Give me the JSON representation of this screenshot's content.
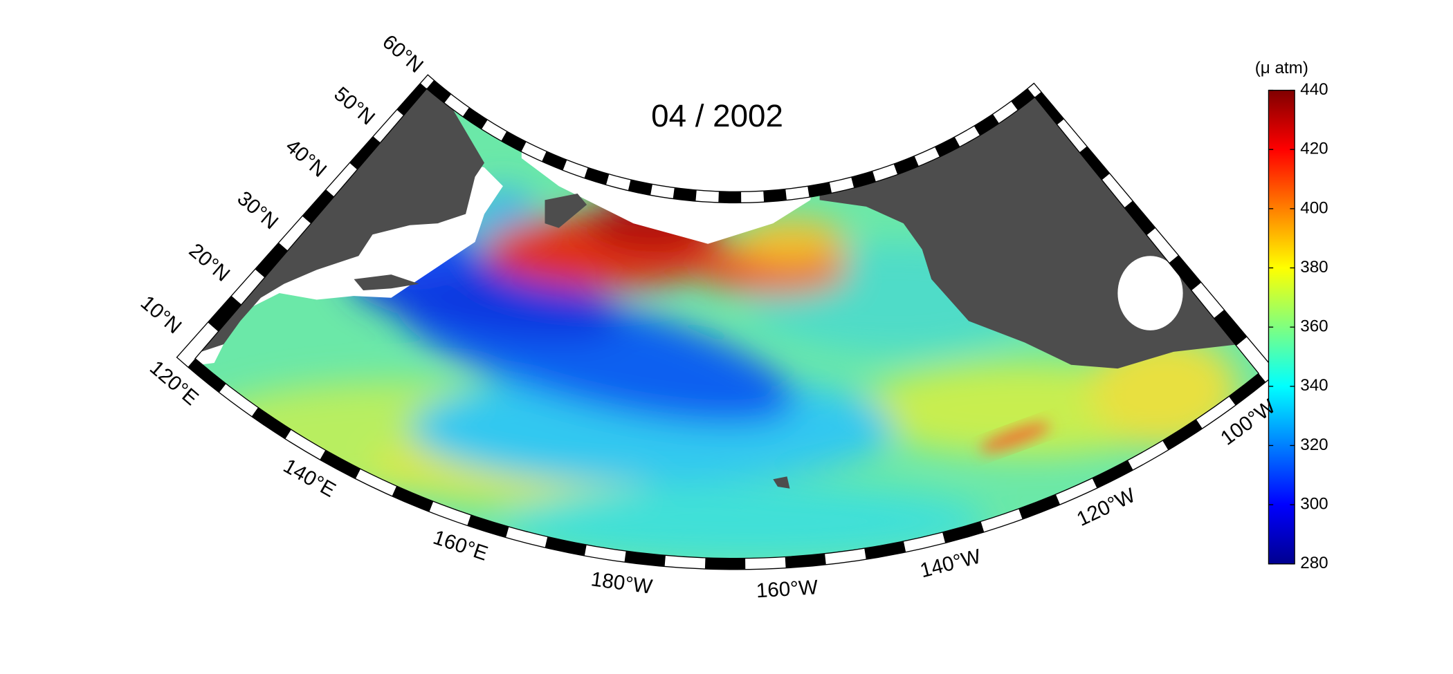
{
  "title": "04 / 2002",
  "colorbar": {
    "label": "(μ atm)",
    "range": [
      280,
      440
    ],
    "ticks": [
      280,
      300,
      320,
      340,
      360,
      380,
      400,
      420,
      440
    ]
  },
  "latitude_labels": [
    "10°N",
    "20°N",
    "30°N",
    "40°N",
    "50°N",
    "60°N"
  ],
  "longitude_labels": [
    "120°E",
    "140°E",
    "160°E",
    "180°W",
    "160°W",
    "140°W",
    "120°W",
    "100°W"
  ]
}
